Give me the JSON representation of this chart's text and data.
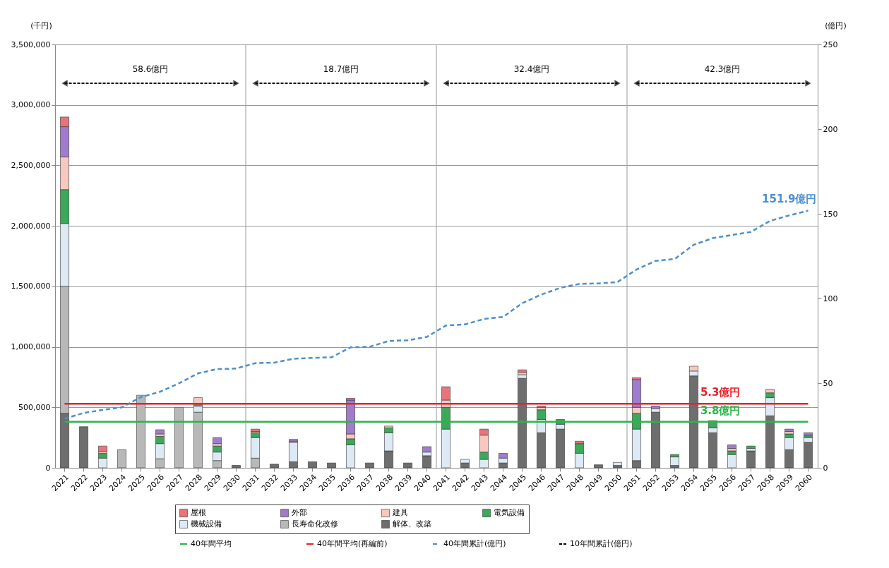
{
  "chart_data": {
    "type": "bar",
    "stacked": true,
    "ylabel": "(千円)",
    "y2label": "(億円)",
    "categories": [
      "2021",
      "2022",
      "2023",
      "2024",
      "2025",
      "2026",
      "2027",
      "2028",
      "2029",
      "2030",
      "2031",
      "2032",
      "2033",
      "2034",
      "2035",
      "2036",
      "2037",
      "2038",
      "2039",
      "2040",
      "2041",
      "2042",
      "2043",
      "2044",
      "2045",
      "2046",
      "2047",
      "2048",
      "2049",
      "2050",
      "2051",
      "2052",
      "2053",
      "2054",
      "2055",
      "2056",
      "2057",
      "2058",
      "2059",
      "2060"
    ],
    "ylim": [
      0,
      3500000
    ],
    "yticks": [
      0,
      {
        "value": 500000,
        "label": "500,000"
      },
      {
        "value": 1000000,
        "label": "1,000,000"
      },
      {
        "value": 1500000,
        "label": "1,500,000"
      },
      {
        "value": 2000000,
        "label": "2,000,000"
      },
      {
        "value": 2500000,
        "label": "2,500,000"
      },
      {
        "value": 3000000,
        "label": "3,000,000"
      },
      {
        "value": 3500000,
        "label": "3,500,000"
      }
    ],
    "y2lim": [
      0,
      250
    ],
    "y2ticks": [
      0,
      50,
      100,
      150,
      200,
      250
    ],
    "grid": true,
    "legend": "bottom",
    "series": [
      {
        "name": "解体、改築",
        "color": "#6e6e6e",
        "values": [
          450000,
          340000,
          null,
          null,
          null,
          null,
          null,
          null,
          null,
          20000,
          null,
          30000,
          50000,
          50000,
          40000,
          null,
          40000,
          140000,
          40000,
          100000,
          null,
          40000,
          null,
          40000,
          740000,
          290000,
          320000,
          null,
          25000,
          20000,
          60000,
          460000,
          20000,
          760000,
          290000,
          null,
          140000,
          430000,
          150000,
          210000
        ]
      },
      {
        "name": "長寿命化改修",
        "color": "#b8b8b8",
        "values": [
          1050000,
          null,
          null,
          150000,
          600000,
          75000,
          500000,
          460000,
          60000,
          null,
          80000,
          null,
          null,
          null,
          null,
          null,
          null,
          null,
          null,
          null,
          null,
          null,
          null,
          null,
          null,
          null,
          null,
          null,
          null,
          null,
          null,
          null,
          null,
          null,
          null,
          null,
          null,
          null,
          null,
          null
        ]
      },
      {
        "name": "機械設備",
        "color": "#dde9f5",
        "values": [
          520000,
          null,
          80000,
          null,
          null,
          125000,
          null,
          50000,
          70000,
          null,
          170000,
          null,
          160000,
          null,
          null,
          190000,
          null,
          150000,
          null,
          30000,
          320000,
          30000,
          70000,
          40000,
          30000,
          110000,
          40000,
          120000,
          null,
          25000,
          260000,
          30000,
          70000,
          40000,
          40000,
          110000,
          20000,
          150000,
          100000,
          40000
        ]
      },
      {
        "name": "電気設備",
        "color": "#3ca85a",
        "values": [
          280000,
          null,
          40000,
          null,
          null,
          60000,
          null,
          20000,
          50000,
          null,
          40000,
          null,
          null,
          null,
          null,
          50000,
          null,
          40000,
          null,
          null,
          180000,
          null,
          60000,
          null,
          null,
          80000,
          40000,
          80000,
          null,
          null,
          130000,
          null,
          20000,
          null,
          60000,
          30000,
          20000,
          40000,
          30000,
          20000
        ]
      },
      {
        "name": "建具",
        "color": "#f6c8c0",
        "values": [
          270000,
          null,
          15000,
          null,
          null,
          20000,
          null,
          50000,
          20000,
          null,
          10000,
          null,
          10000,
          null,
          null,
          40000,
          null,
          15000,
          null,
          null,
          60000,
          null,
          140000,
          null,
          20000,
          20000,
          null,
          null,
          null,
          null,
          50000,
          null,
          null,
          40000,
          null,
          20000,
          null,
          30000,
          20000,
          null
        ]
      },
      {
        "name": "外部",
        "color": "#a07ccc",
        "values": [
          250000,
          null,
          null,
          null,
          null,
          35000,
          null,
          null,
          50000,
          null,
          null,
          null,
          15000,
          null,
          null,
          280000,
          null,
          null,
          null,
          45000,
          null,
          null,
          null,
          40000,
          null,
          null,
          null,
          null,
          null,
          null,
          230000,
          20000,
          null,
          null,
          null,
          30000,
          null,
          null,
          20000,
          20000
        ]
      },
      {
        "name": "屋根",
        "color": "#e8737a",
        "values": [
          80000,
          null,
          45000,
          null,
          null,
          null,
          null,
          null,
          null,
          null,
          20000,
          null,
          null,
          null,
          null,
          15000,
          null,
          null,
          null,
          null,
          110000,
          null,
          50000,
          null,
          20000,
          10000,
          null,
          20000,
          null,
          null,
          15000,
          null,
          null,
          null,
          null,
          null,
          null,
          null,
          null,
          null
        ]
      },
      {
        "name": "40年間平均",
        "type": "line",
        "color": "#2db34a",
        "line_style": "solid",
        "values": [
          380000,
          380000,
          380000,
          380000,
          380000,
          380000,
          380000,
          380000,
          380000,
          380000,
          380000,
          380000,
          380000,
          380000,
          380000,
          380000,
          380000,
          380000,
          380000,
          380000,
          380000,
          380000,
          380000,
          380000,
          380000,
          380000,
          380000,
          380000,
          380000,
          380000,
          380000,
          380000,
          380000,
          380000,
          380000,
          380000,
          380000,
          380000,
          380000,
          380000
        ]
      },
      {
        "name": "40年間平均(再編前)",
        "type": "line",
        "color": "#e8202a",
        "line_style": "solid",
        "values": [
          530000,
          530000,
          530000,
          530000,
          530000,
          530000,
          530000,
          530000,
          530000,
          530000,
          530000,
          530000,
          530000,
          530000,
          530000,
          530000,
          530000,
          530000,
          530000,
          530000,
          530000,
          530000,
          530000,
          530000,
          530000,
          530000,
          530000,
          530000,
          530000,
          530000,
          530000,
          530000,
          530000,
          530000,
          530000,
          530000,
          530000,
          530000,
          530000,
          530000
        ]
      },
      {
        "name": "40年間累計(億円)",
        "type": "line",
        "axis": "y2",
        "color": "#4a8fd0",
        "line_style": "dashed",
        "values": [
          29,
          32.4,
          34.2,
          35.7,
          41.7,
          44.9,
          49.9,
          55.8,
          58.3,
          58.6,
          61.8,
          62.1,
          64.4,
          64.9,
          65.3,
          71.1,
          71.5,
          74.9,
          75.3,
          77.3,
          84,
          84.7,
          87.9,
          89.1,
          97.2,
          102.3,
          106.3,
          108.6,
          108.9,
          109.7,
          117.1,
          122.2,
          123.3,
          131.7,
          135.6,
          137.5,
          139.3,
          145.8,
          149,
          151.9
        ]
      }
    ],
    "annotations": [
      "58.6億円",
      "18.7億円",
      "32.4億円",
      "42.3億円",
      "10年間累計(億円)",
      {
        "text": "5.3億円",
        "x": "2056",
        "y": 530000
      },
      {
        "text": "3.8億円",
        "x": "2056",
        "y": 380000
      },
      {
        "text": "151.9億円",
        "x": "2060",
        "y": 2126600
      }
    ]
  }
}
